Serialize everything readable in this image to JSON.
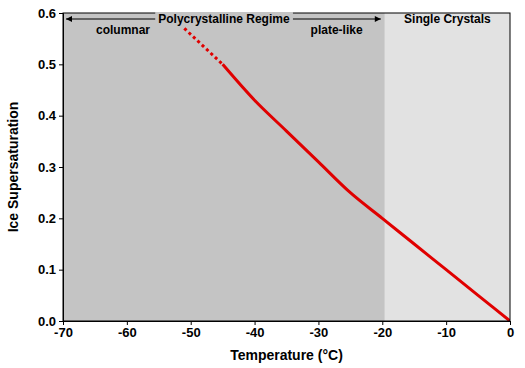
{
  "chart_data": {
    "type": "line",
    "x_label": "Temperature (°C)",
    "y_label": "Ice Supersaturation",
    "annotations": [
      "Polycrystalline Regime",
      "columnar",
      "plate-like",
      "Single Crystals"
    ],
    "xlim": [
      -70,
      0
    ],
    "xticks": [
      -70,
      -60,
      -50,
      -40,
      -30,
      -20,
      -10,
      0
    ],
    "ylim": [
      0,
      0.6
    ],
    "yticks": [
      {
        "value": 0,
        "label": "0.0"
      },
      0.1,
      0.2,
      0.3,
      0.4,
      0.5,
      0.6
    ],
    "grid": false,
    "series": [
      {
        "color": "#e00000",
        "line_style": "solid",
        "x": [
          -45,
          -40,
          -35,
          -30,
          -25,
          -20,
          -15,
          -10,
          -5,
          0
        ],
        "values": [
          0.5,
          0.43,
          0.37,
          0.31,
          0.25,
          0.2,
          0.15,
          0.1,
          0.05,
          0.0
        ]
      },
      {
        "color": "#e00000",
        "line_style": "dotted",
        "x": [
          -51,
          -48,
          -45
        ],
        "values": [
          0.57,
          0.535,
          0.5
        ]
      }
    ]
  }
}
